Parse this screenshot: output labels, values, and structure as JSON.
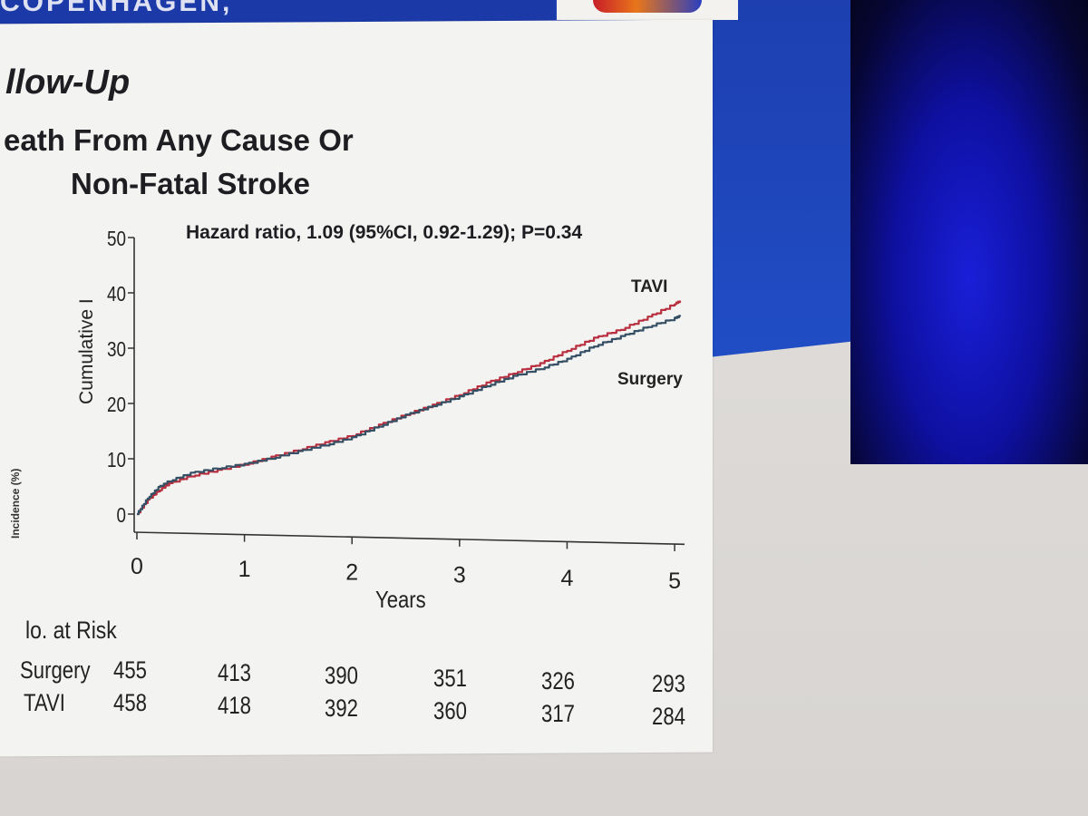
{
  "header": {
    "text": "COPENHAGEN,"
  },
  "slide": {
    "title": "llow-Up",
    "subtitle_line1": "eath From Any Cause Or",
    "subtitle_line2": "Non-Fatal Stroke",
    "hazard_note": "Hazard ratio, 1.09 (95%CI, 0.92-1.29); P=0.34",
    "ylabel": "Cumulative I",
    "ylabel_cont": "Incidence (%)",
    "xlabel": "Years"
  },
  "colors": {
    "tavi": "#b8303f",
    "surgery": "#355064",
    "axis": "#333333",
    "slide_bg": "#f3f3f1",
    "blue": "#1f48c0"
  },
  "chart_data": {
    "type": "line",
    "title": "Death From Any Cause Or Non-Fatal Stroke",
    "xlabel": "Years",
    "ylabel": "Cumulative Incidence (%)",
    "xlim": [
      0,
      5.05
    ],
    "ylim": [
      0,
      50
    ],
    "x_ticks": [
      0,
      1,
      2,
      3,
      4,
      5
    ],
    "y_ticks": [
      0,
      10,
      20,
      30,
      40,
      50
    ],
    "y_tick_labels": [
      "0",
      "10",
      "20",
      "30",
      "40",
      "50"
    ],
    "series": [
      {
        "name": "TAVI",
        "color": "#b8303f",
        "x": [
          0,
          0.1,
          0.2,
          0.3,
          0.5,
          0.75,
          1,
          1.25,
          1.5,
          1.75,
          2,
          2.25,
          2.5,
          2.75,
          3,
          3.25,
          3.5,
          3.75,
          4,
          4.25,
          4.5,
          4.75,
          5,
          5.05
        ],
        "values": [
          0,
          2.5,
          4.2,
          5.5,
          6.9,
          7.9,
          9.0,
          10.3,
          11.6,
          12.9,
          14.2,
          16.1,
          18.0,
          19.7,
          21.6,
          23.7,
          25.5,
          27.2,
          29.6,
          31.8,
          33.4,
          35.6,
          38.0,
          38.5
        ]
      },
      {
        "name": "Surgery",
        "color": "#355064",
        "x": [
          0,
          0.1,
          0.2,
          0.3,
          0.5,
          0.75,
          1,
          1.25,
          1.5,
          1.75,
          2,
          2.25,
          2.5,
          2.75,
          3,
          3.25,
          3.5,
          3.75,
          4,
          4.25,
          4.5,
          4.75,
          5,
          5.05
        ],
        "values": [
          0,
          2.9,
          4.8,
          6.0,
          7.4,
          8.3,
          9.0,
          10.1,
          11.3,
          12.5,
          13.8,
          15.9,
          17.9,
          19.6,
          21.2,
          23.2,
          24.9,
          26.3,
          28.0,
          30.4,
          32.1,
          33.9,
          35.4,
          35.8
        ]
      }
    ],
    "series_labels": {
      "tavi": "TAVI",
      "surgery": "Surgery"
    },
    "at_risk": {
      "title": "lo. at Risk",
      "rows": [
        {
          "label": "Surgery",
          "values": [
            455,
            413,
            390,
            351,
            326,
            293
          ]
        },
        {
          "label": "TAVI",
          "values": [
            458,
            418,
            392,
            360,
            317,
            284
          ]
        }
      ]
    }
  }
}
